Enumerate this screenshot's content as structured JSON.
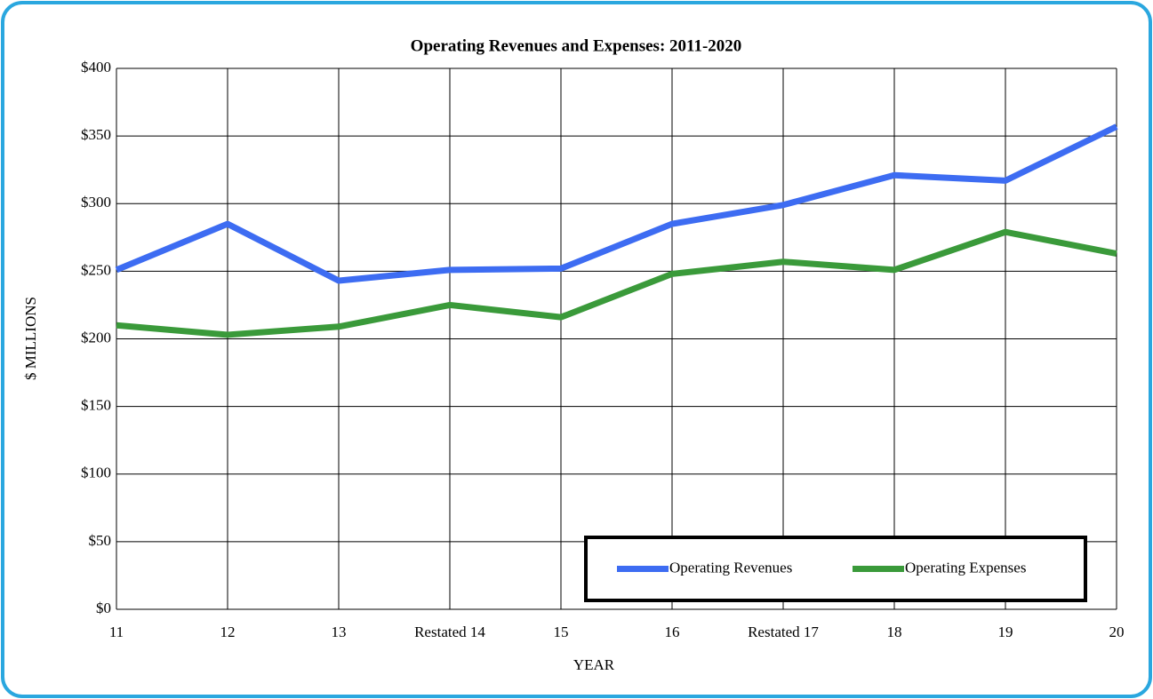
{
  "chart_data": {
    "type": "line",
    "title": "Operating Revenues and Expenses: 2011-2020",
    "x_label": "YEAR",
    "y_label": "$ MILLIONS",
    "categories": [
      "11",
      "12",
      "13",
      "Restated 14",
      "15",
      "16",
      "Restated 17",
      "18",
      "19",
      "20"
    ],
    "series": [
      {
        "name": "Operating Revenues",
        "color": "#3d6cf2",
        "values": [
          251,
          285,
          243,
          251,
          252,
          285,
          299,
          321,
          317,
          357
        ]
      },
      {
        "name": "Operating Expenses",
        "color": "#3a9a3a",
        "values": [
          210,
          203,
          209,
          225,
          216,
          248,
          257,
          251,
          279,
          263
        ]
      }
    ],
    "ylim": [
      0,
      400
    ],
    "yticks": [
      {
        "value": 0,
        "label": "$0"
      },
      {
        "value": 50,
        "label": "$50"
      },
      {
        "value": 100,
        "label": "$100"
      },
      {
        "value": 150,
        "label": "$150"
      },
      {
        "value": 200,
        "label": "$200"
      },
      {
        "value": 250,
        "label": "$250"
      },
      {
        "value": 300,
        "label": "$300"
      },
      {
        "value": 350,
        "label": "$350"
      },
      {
        "value": 400,
        "label": "$400"
      }
    ],
    "grid": true,
    "legend": "lower right"
  }
}
